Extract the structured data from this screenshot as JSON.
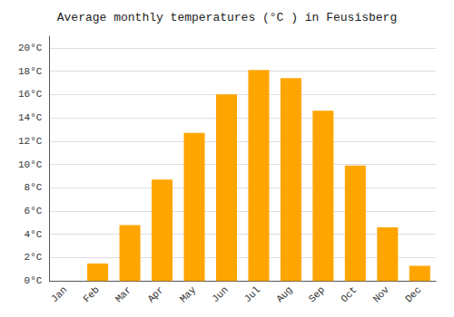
{
  "chart_data": {
    "type": "bar",
    "title": "Average monthly temperatures (°C ) in Feusisberg",
    "categories": [
      "Jan",
      "Feb",
      "Mar",
      "Apr",
      "May",
      "Jun",
      "Jul",
      "Aug",
      "Sep",
      "Oct",
      "Nov",
      "Dec"
    ],
    "values": [
      0.0,
      1.5,
      4.8,
      8.7,
      12.7,
      16.0,
      18.1,
      17.4,
      14.6,
      9.9,
      4.6,
      1.3
    ],
    "color": "#FFA500",
    "ylim": [
      0,
      21
    ],
    "yticks": [
      {
        "value": 0,
        "label": "0°C"
      },
      {
        "value": 2,
        "label": "2°C"
      },
      {
        "value": 4,
        "label": "4°C"
      },
      {
        "value": 6,
        "label": "6°C"
      },
      {
        "value": 8,
        "label": "8°C"
      },
      {
        "value": 10,
        "label": "10°C"
      },
      {
        "value": 12,
        "label": "12°C"
      },
      {
        "value": 14,
        "label": "14°C"
      },
      {
        "value": 16,
        "label": "16°C"
      },
      {
        "value": 18,
        "label": "18°C"
      },
      {
        "value": 20,
        "label": "20°C"
      }
    ],
    "grid": true
  }
}
